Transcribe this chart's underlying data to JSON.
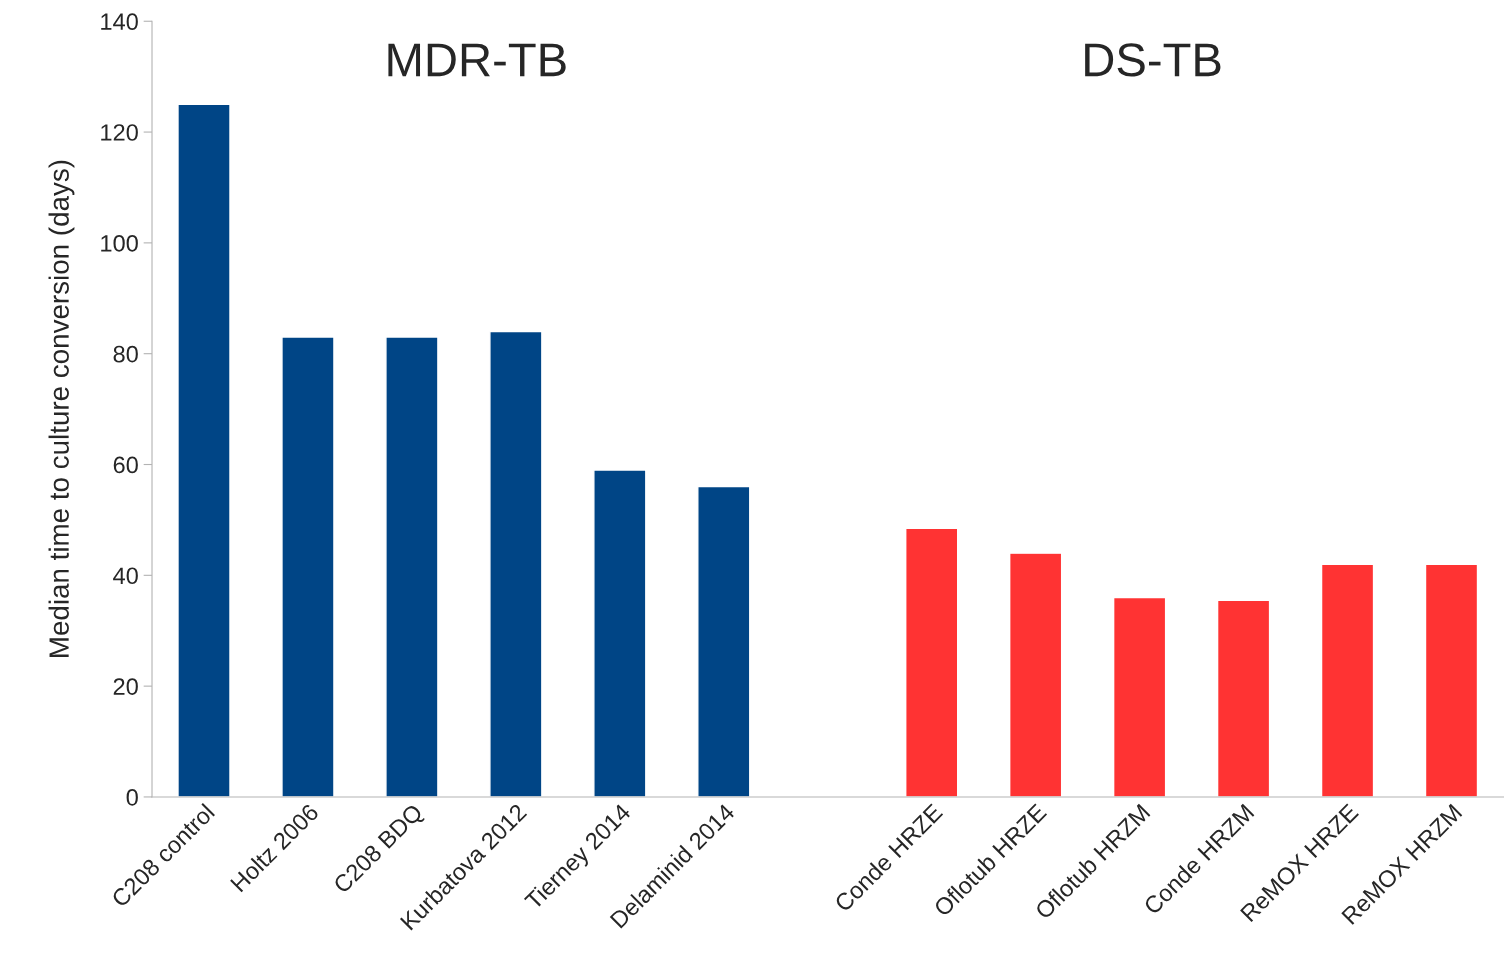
{
  "chart_data": {
    "type": "bar",
    "ylabel": "Median time to culture conversion (days)",
    "categories": [
      "C208 control",
      "Holtz 2006",
      "C208 BDQ",
      "Kurbatova 2012",
      "Tierney 2014",
      "Delaminid 2014",
      null,
      "Conde HRZE",
      "Oflotub HRZE",
      "Oflotub HRZM",
      "Conde HRZM",
      "ReMOX HRZE",
      "ReMOX HRZM"
    ],
    "values": [
      125,
      83,
      83,
      84,
      59,
      56,
      null,
      48.5,
      44,
      36,
      35.5,
      42,
      42
    ],
    "colors": [
      "#004586",
      "#004586",
      "#004586",
      "#004586",
      "#004586",
      "#004586",
      "#004586",
      "#ff3333",
      "#ff3333",
      "#ff3333",
      "#ff3333",
      "#ff3333",
      "#ff3333"
    ],
    "ylim": [
      0,
      140
    ],
    "yticks": [
      0,
      20,
      40,
      60,
      80,
      100,
      120,
      140
    ],
    "annotations": [
      "MDR-TB",
      "DS-TB"
    ],
    "grid": false,
    "legend": false
  }
}
